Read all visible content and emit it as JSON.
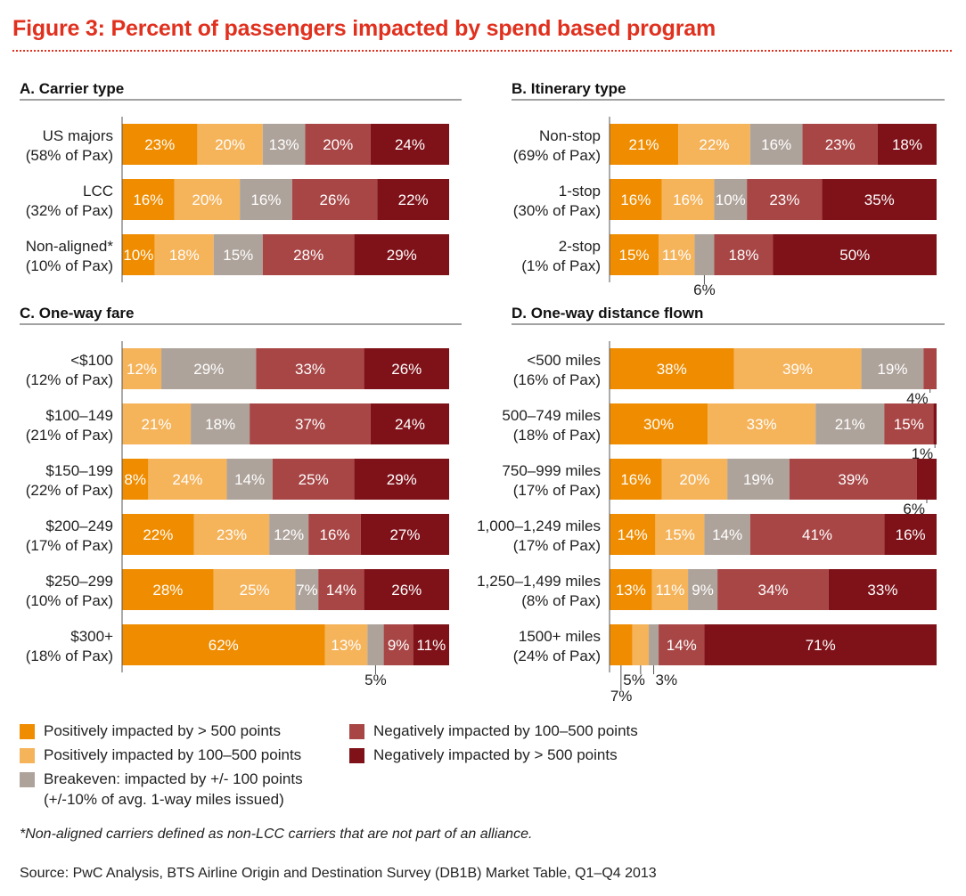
{
  "title": "Figure 3: Percent of passengers impacted by spend based program",
  "colors": {
    "pos_high": "#ef8c00",
    "pos_low": "#f5b35a",
    "breakeven": "#aea39b",
    "neg_low": "#a84646",
    "neg_high": "#7f1219",
    "title": "#e0301e"
  },
  "legend": [
    {
      "key": "pos_high",
      "label": "Positively impacted by > 500 points"
    },
    {
      "key": "pos_low",
      "label": "Positively impacted by 100–500 points"
    },
    {
      "key": "breakeven",
      "label": "Breakeven: impacted by +/- 100 points",
      "sublabel": "(+/-10% of avg. 1-way miles issued)"
    },
    {
      "key": "neg_low",
      "label": "Negatively impacted by 100–500 points"
    },
    {
      "key": "neg_high",
      "label": "Negatively impacted by > 500 points"
    }
  ],
  "chart_data": [
    {
      "type": "bar",
      "stacked": true,
      "orientation": "horizontal",
      "title": "A. Carrier type",
      "xlim": [
        0,
        100
      ],
      "categories": [
        [
          "US majors",
          "(58% of Pax)"
        ],
        [
          "LCC",
          "(32% of Pax)"
        ],
        [
          "Non-aligned*",
          "(10% of Pax)"
        ]
      ],
      "series": [
        {
          "name": "Positively impacted by > 500 points",
          "values": [
            23,
            16,
            10
          ]
        },
        {
          "name": "Positively impacted by 100–500 points",
          "values": [
            20,
            20,
            18
          ]
        },
        {
          "name": "Breakeven: impacted by +/- 100 points",
          "values": [
            13,
            16,
            15
          ]
        },
        {
          "name": "Negatively impacted by 100–500 points",
          "values": [
            20,
            26,
            28
          ]
        },
        {
          "name": "Negatively impacted by > 500 points",
          "values": [
            24,
            22,
            29
          ]
        }
      ]
    },
    {
      "type": "bar",
      "stacked": true,
      "orientation": "horizontal",
      "title": "B. Itinerary type",
      "xlim": [
        0,
        100
      ],
      "categories": [
        [
          "Non-stop",
          "(69% of Pax)"
        ],
        [
          "1-stop",
          "(30% of Pax)"
        ],
        [
          "2-stop",
          "(1% of Pax)"
        ]
      ],
      "series": [
        {
          "name": "Positively impacted by > 500 points",
          "values": [
            21,
            16,
            15
          ]
        },
        {
          "name": "Positively impacted by 100–500 points",
          "values": [
            22,
            16,
            11
          ]
        },
        {
          "name": "Breakeven: impacted by +/- 100 points",
          "values": [
            16,
            10,
            6
          ]
        },
        {
          "name": "Negatively impacted by 100–500 points",
          "values": [
            23,
            23,
            18
          ]
        },
        {
          "name": "Negatively impacted by > 500 points",
          "values": [
            18,
            35,
            50
          ]
        }
      ],
      "callouts": [
        {
          "row": 2,
          "series": 2,
          "label": "6%"
        }
      ]
    },
    {
      "type": "bar",
      "stacked": true,
      "orientation": "horizontal",
      "title": "C. One-way fare",
      "xlim": [
        0,
        100
      ],
      "categories": [
        [
          "<$100",
          "(12% of Pax)"
        ],
        [
          "$100–149",
          "(21% of Pax)"
        ],
        [
          "$150–199",
          "(22% of Pax)"
        ],
        [
          "$200–249",
          "(17% of Pax)"
        ],
        [
          "$250–299",
          "(10% of Pax)"
        ],
        [
          "$300+",
          "(18% of Pax)"
        ]
      ],
      "series": [
        {
          "name": "Positively impacted by > 500 points",
          "values": [
            0,
            0,
            8,
            22,
            28,
            62
          ]
        },
        {
          "name": "Positively impacted by 100–500 points",
          "values": [
            12,
            21,
            24,
            23,
            25,
            13
          ]
        },
        {
          "name": "Breakeven: impacted by +/- 100 points",
          "values": [
            29,
            18,
            14,
            12,
            7,
            5
          ]
        },
        {
          "name": "Negatively impacted by 100–500 points",
          "values": [
            33,
            37,
            25,
            16,
            14,
            9
          ]
        },
        {
          "name": "Negatively impacted by > 500 points",
          "values": [
            26,
            24,
            29,
            27,
            26,
            11
          ]
        }
      ],
      "callouts": [
        {
          "row": 5,
          "series": 2,
          "label": "5%"
        }
      ]
    },
    {
      "type": "bar",
      "stacked": true,
      "orientation": "horizontal",
      "title": "D. One-way distance flown",
      "xlim": [
        0,
        100
      ],
      "categories": [
        [
          "<500 miles",
          "(16% of Pax)"
        ],
        [
          "500–749 miles",
          "(18% of Pax)"
        ],
        [
          "750–999 miles",
          "(17% of Pax)"
        ],
        [
          "1,000–1,249 miles",
          "(17% of Pax)"
        ],
        [
          "1,250–1,499 miles",
          "(8% of Pax)"
        ],
        [
          "1500+ miles",
          "(24% of Pax)"
        ]
      ],
      "series": [
        {
          "name": "Positively impacted by > 500 points",
          "values": [
            38,
            30,
            16,
            14,
            13,
            7
          ]
        },
        {
          "name": "Positively impacted by 100–500 points",
          "values": [
            39,
            33,
            20,
            15,
            11,
            5
          ]
        },
        {
          "name": "Breakeven: impacted by +/- 100 points",
          "values": [
            19,
            21,
            19,
            14,
            9,
            3
          ]
        },
        {
          "name": "Negatively impacted by 100–500 points",
          "values": [
            4,
            15,
            39,
            41,
            34,
            14
          ]
        },
        {
          "name": "Negatively impacted by > 500 points",
          "values": [
            0,
            1,
            6,
            16,
            33,
            71
          ]
        }
      ],
      "callouts": [
        {
          "row": 0,
          "series": 3,
          "label": "4%"
        },
        {
          "row": 1,
          "series": 4,
          "label": "1%"
        },
        {
          "row": 2,
          "series": 4,
          "label": "6%"
        },
        {
          "row": 5,
          "series": 0,
          "label": "7%"
        },
        {
          "row": 5,
          "series": 1,
          "label": "5%"
        },
        {
          "row": 5,
          "series": 2,
          "label": "3%"
        }
      ]
    }
  ],
  "footnote": "*Non-aligned carriers defined as non-LCC carriers that are not part of an alliance.",
  "source": "Source: PwC Analysis, BTS Airline Origin and Destination Survey (DB1B) Market Table, Q1–Q4 2013"
}
